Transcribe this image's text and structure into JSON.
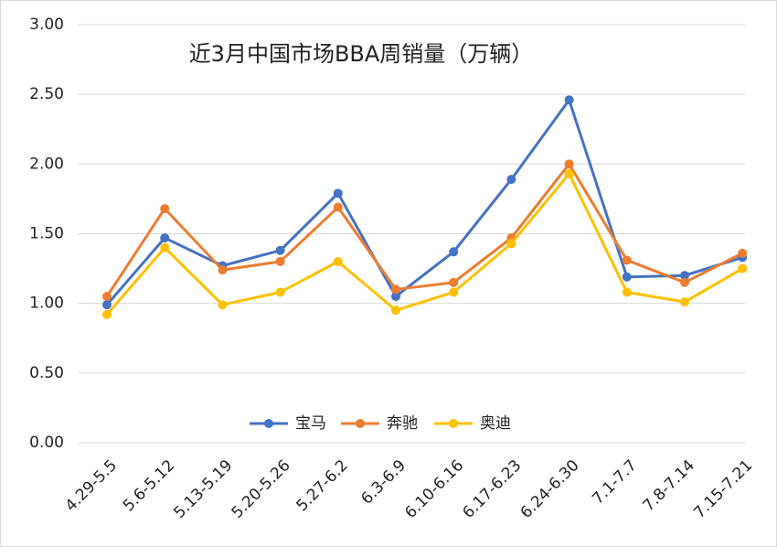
{
  "chart_data": {
    "type": "line",
    "title": "近3月中国市场BBA周销量（万辆）",
    "categories": [
      "4.29-5.5",
      "5.6-5.12",
      "5.13-5.19",
      "5.20-5.26",
      "5.27-6.2",
      "6.3-6.9",
      "6.10-6.16",
      "6.17-6.23",
      "6.24-6.30",
      "7.1-7.7",
      "7.8-7.14",
      "7.15-7.21"
    ],
    "series": [
      {
        "name": "宝马",
        "color": "#4472c4",
        "values": [
          0.99,
          1.47,
          1.27,
          1.38,
          1.79,
          1.05,
          1.37,
          1.89,
          2.46,
          1.19,
          1.2,
          1.33
        ]
      },
      {
        "name": "奔驰",
        "color": "#ed7d31",
        "values": [
          1.05,
          1.68,
          1.24,
          1.3,
          1.69,
          1.1,
          1.15,
          1.47,
          2.0,
          1.31,
          1.15,
          1.36
        ]
      },
      {
        "name": "奥迪",
        "color": "#ffc000",
        "values": [
          0.92,
          1.4,
          0.99,
          1.08,
          1.3,
          0.95,
          1.08,
          1.43,
          1.93,
          1.08,
          1.01,
          1.25
        ]
      }
    ],
    "ylim": [
      0,
      3
    ],
    "yticks": [
      {
        "value": 0,
        "label": "0.00"
      },
      {
        "value": 0.5,
        "label": "0.50"
      },
      {
        "value": 1,
        "label": "1.00"
      },
      {
        "value": 1.5,
        "label": "1.50"
      },
      {
        "value": 2,
        "label": "2.00"
      },
      {
        "value": 2.5,
        "label": "2.50"
      },
      {
        "value": 3,
        "label": "3.00"
      }
    ],
    "grid": true,
    "legend": "bottom"
  }
}
